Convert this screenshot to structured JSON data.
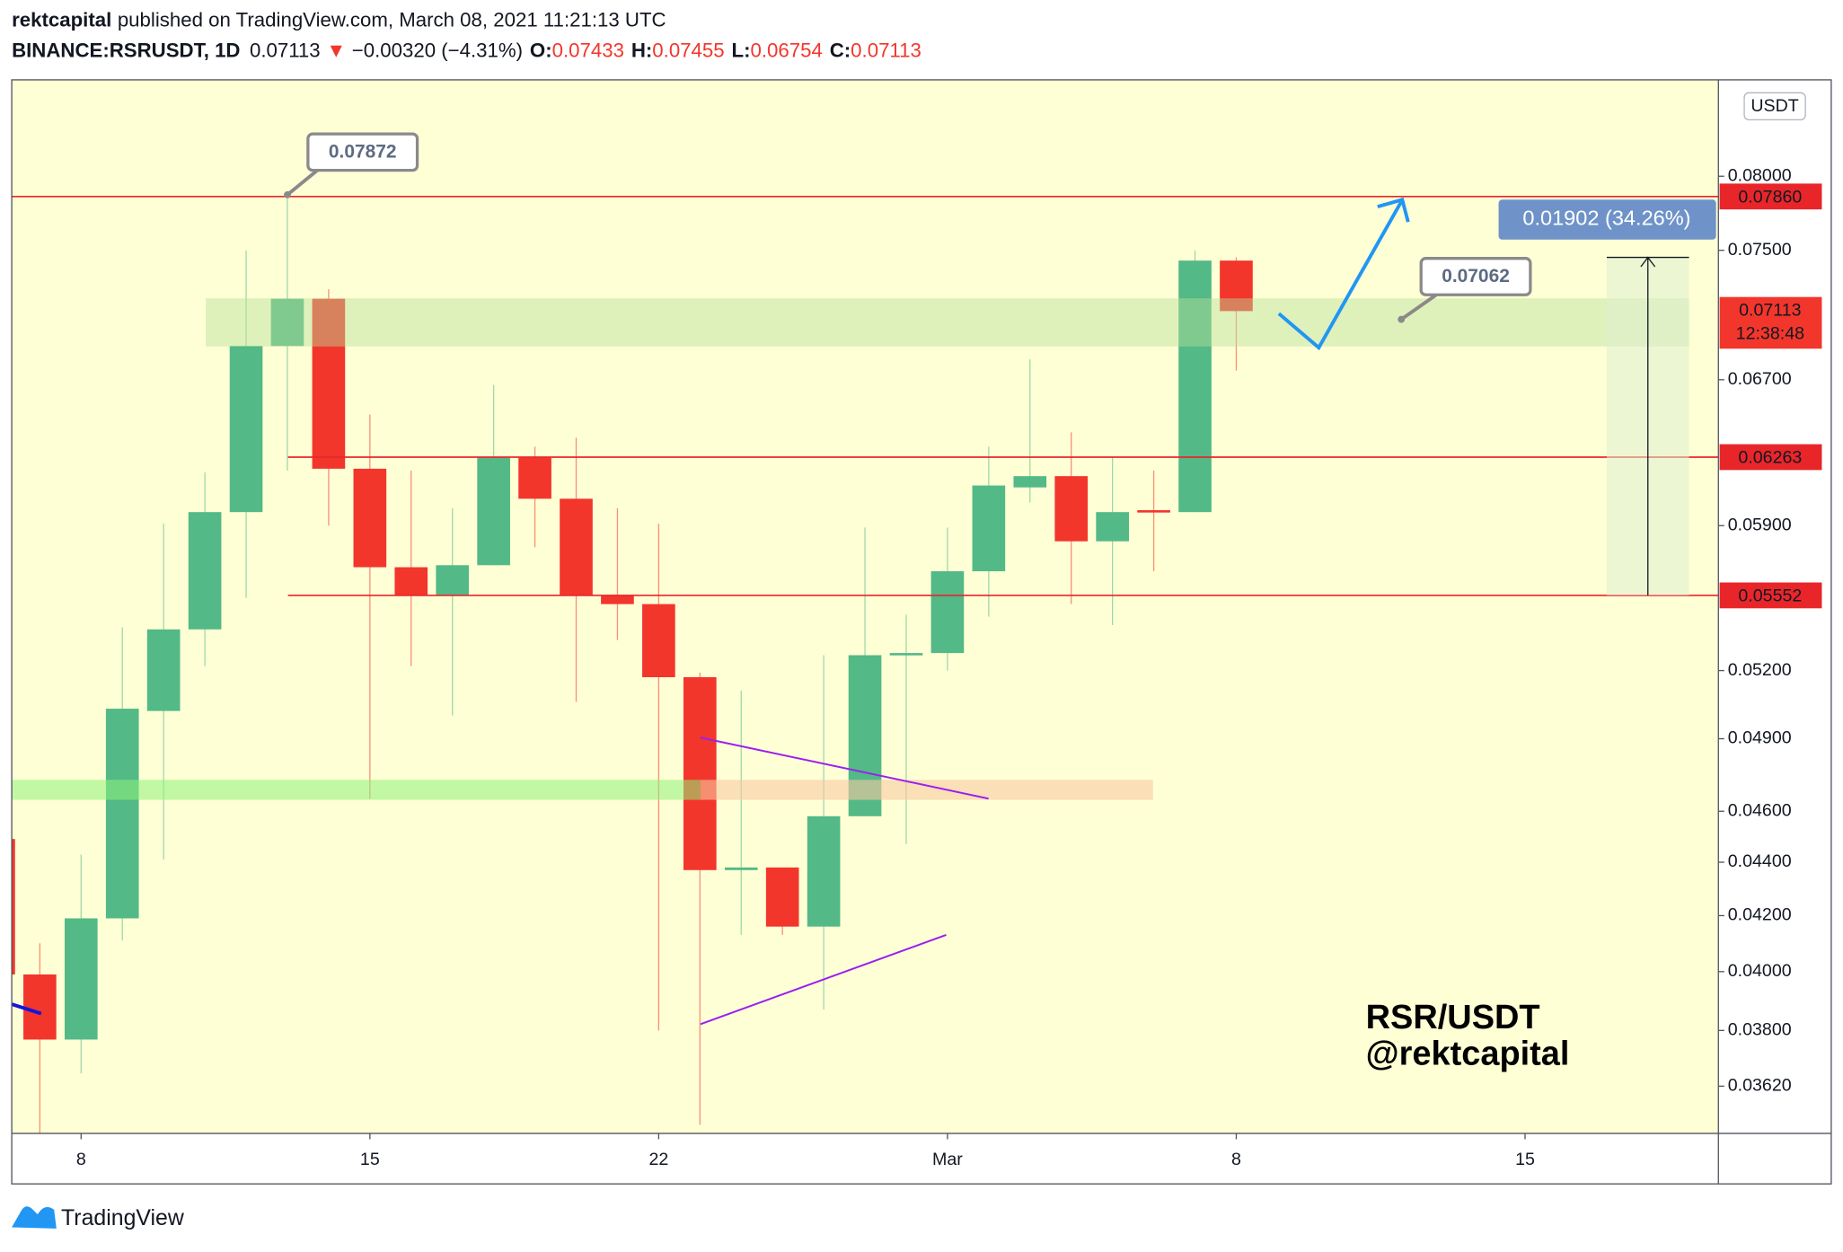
{
  "header": {
    "author": "rektcapital",
    "published": "published on TradingView.com, March 08, 2021 11:21:13 UTC",
    "symbol": "BINANCE:RSRUSDT, 1D",
    "change_arrow": "▼",
    "change": "−0.00320 (−4.31%)",
    "ohlc_labels": [
      "O:",
      "H:",
      "L:",
      "C:"
    ]
  },
  "chart_data": {
    "type": "candlestick",
    "categories": [
      null,
      null,
      "8",
      null,
      null,
      null,
      null,
      null,
      null,
      "15",
      null,
      null,
      null,
      null,
      null,
      null,
      "22",
      null,
      null,
      null,
      null,
      null,
      null,
      "Mar",
      null,
      null,
      null,
      null,
      null,
      null,
      "8",
      null,
      null,
      null,
      null,
      null,
      null,
      "15",
      null,
      null,
      null,
      null
    ],
    "open": [
      0.0449,
      0.0399,
      0.0377,
      0.0419,
      0.0502,
      0.0539,
      0.0597,
      0.069,
      0.0719,
      0.062,
      0.0569,
      0.0555,
      0.057,
      0.0626,
      0.0604,
      0.0555,
      0.0551,
      0.0517,
      0.0437,
      0.0438,
      0.0416,
      0.0458,
      0.0527,
      0.0528,
      0.0567,
      0.061,
      0.0616,
      0.0582,
      0.0598,
      0.0597,
      0.07433,
      null,
      null,
      null,
      null,
      null,
      null,
      null,
      null,
      null,
      null,
      null
    ],
    "high": [
      0.0452,
      0.041,
      0.0443,
      0.054,
      0.0591,
      0.0618,
      0.075,
      0.07872,
      0.0725,
      0.065,
      0.0619,
      0.0599,
      0.0667,
      0.0632,
      0.0637,
      0.0599,
      0.0591,
      0.0519,
      0.0511,
      0.0438,
      0.0527,
      0.0589,
      0.0546,
      0.0589,
      0.0632,
      0.0682,
      0.064,
      0.0626,
      0.0619,
      0.075,
      0.07455,
      null,
      null,
      null,
      null,
      null,
      null,
      null,
      null,
      null,
      null,
      null
    ],
    "low": [
      0.0399,
      0.0347,
      0.0366,
      0.0411,
      0.0441,
      0.0522,
      0.0554,
      0.0619,
      0.059,
      0.0465,
      0.0522,
      0.05,
      0.057,
      0.0579,
      0.0506,
      0.0534,
      0.038,
      0.035,
      0.0413,
      0.0413,
      0.0387,
      0.0458,
      0.0447,
      0.052,
      0.0545,
      0.0602,
      0.0551,
      0.0541,
      0.0567,
      0.0597,
      0.06754,
      null,
      null,
      null,
      null,
      null,
      null,
      null,
      null,
      null,
      null,
      null
    ],
    "close": [
      0.0399,
      0.0377,
      0.0419,
      0.0503,
      0.0539,
      0.0597,
      0.069,
      0.0719,
      0.062,
      0.0569,
      0.0555,
      0.057,
      0.0626,
      0.0604,
      0.0555,
      0.0551,
      0.0517,
      0.0437,
      0.0438,
      0.0416,
      0.0458,
      0.0527,
      0.0528,
      0.0567,
      0.0611,
      0.0616,
      0.0582,
      0.0597,
      0.0597,
      0.07433,
      0.07113,
      null,
      null,
      null,
      null,
      null,
      null,
      null,
      null,
      null,
      null,
      null
    ],
    "up_color": "#53b987",
    "down_color": "#f2362c",
    "log_scale": true,
    "ylim": [
      0.03474,
      0.08701
    ],
    "yticks": [
      {
        "value": 0.08,
        "label": "0.08000"
      },
      {
        "value": 0.075,
        "label": "0.07500"
      },
      {
        "value": 0.067,
        "label": "0.06700"
      },
      {
        "value": 0.059,
        "label": "0.05900"
      },
      {
        "value": 0.052,
        "label": "0.05200"
      },
      {
        "value": 0.049,
        "label": "0.04900"
      },
      {
        "value": 0.046,
        "label": "0.04600"
      },
      {
        "value": 0.044,
        "label": "0.04400"
      },
      {
        "value": 0.042,
        "label": "0.04200"
      },
      {
        "value": 0.04,
        "label": "0.04000"
      },
      {
        "value": 0.038,
        "label": "0.03800"
      },
      {
        "value": 0.0362,
        "label": "0.03620"
      }
    ],
    "currency": "USDT",
    "level_color": "#e8262a",
    "levels": [
      {
        "value": 0.0786,
        "label": "0.07860"
      },
      {
        "value": 0.06263,
        "label": "0.06263"
      },
      {
        "value": 0.05552,
        "label": "0.05552"
      }
    ],
    "last_price": {
      "value": 0.07113,
      "label": "0.07113",
      "countdown": "12:38:48"
    },
    "callouts": [
      {
        "value": 0.07872,
        "label": "0.07872"
      },
      {
        "value": 0.07062,
        "label": "0.07062"
      }
    ],
    "measure": {
      "from": 0.05552,
      "value": 0.01902,
      "label": "0.01902 (34.26%)"
    },
    "watermark": [
      "RSR/USDT",
      "@rektcapital"
    ]
  },
  "footer": {
    "brand": "TradingView"
  }
}
